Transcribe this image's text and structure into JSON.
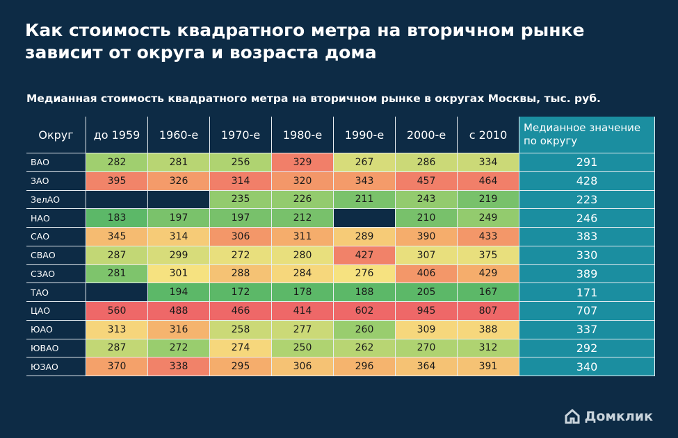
{
  "title": "Как стоимость квадратного метра на вторичном рынке зависит от округа и возраста дома",
  "subtitle": "Медианная стоимость квадратного метра на вторичном рынке в округах Москвы, тыс. руб.",
  "table": {
    "header": [
      "Округ",
      "до 1959",
      "1960-е",
      "1970-е",
      "1980-е",
      "1990-е",
      "2000-е",
      "с 2010",
      "Медианное значение по округу"
    ],
    "rows": [
      [
        "ВАО",
        282,
        281,
        256,
        329,
        267,
        286,
        334,
        291
      ],
      [
        "ЗАО",
        395,
        326,
        314,
        320,
        343,
        457,
        464,
        428
      ],
      [
        "ЗелАО",
        null,
        null,
        235,
        226,
        211,
        243,
        219,
        223
      ],
      [
        "НАО",
        183,
        197,
        197,
        212,
        null,
        210,
        249,
        246
      ],
      [
        "САО",
        345,
        314,
        306,
        311,
        289,
        390,
        433,
        383
      ],
      [
        "СВАО",
        287,
        299,
        272,
        280,
        427,
        307,
        375,
        330
      ],
      [
        "СЗАО",
        281,
        301,
        288,
        284,
        276,
        406,
        429,
        389
      ],
      [
        "ТАО",
        null,
        194,
        172,
        178,
        188,
        205,
        167,
        171
      ],
      [
        "ЦАО",
        560,
        488,
        466,
        414,
        602,
        945,
        807,
        707
      ],
      [
        "ЮАО",
        313,
        316,
        258,
        277,
        260,
        309,
        388,
        337
      ],
      [
        "ЮВАО",
        287,
        272,
        274,
        250,
        262,
        270,
        312,
        292
      ],
      [
        "ЮЗАО",
        370,
        338,
        295,
        306,
        296,
        364,
        391,
        340
      ]
    ]
  },
  "brand": "Домклик"
}
